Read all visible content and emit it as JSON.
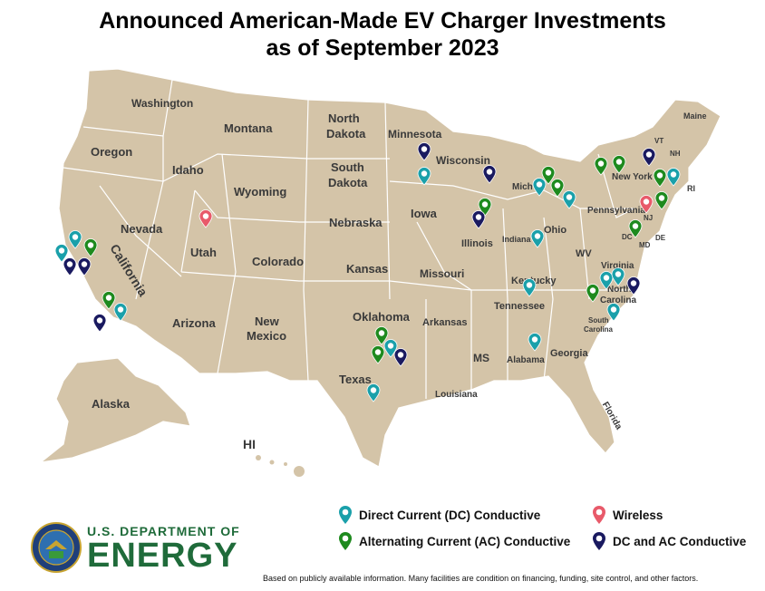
{
  "title_line1": "Announced American-Made EV Charger Investments",
  "title_line2": "as of September 2023",
  "states": [
    "Washington",
    "Montana",
    "North Dakota",
    "Minnesota",
    "Oregon",
    "Idaho",
    "South Dakota",
    "Wisconsin",
    "Wyoming",
    "Nevada",
    "Utah",
    "Nebraska",
    "Iowa",
    "Colorado",
    "Kansas",
    "Missouri",
    "Illinois",
    "Indiana",
    "Ohio",
    "Michigan",
    "California",
    "Arizona",
    "New Mexico",
    "Oklahoma",
    "Arkansas",
    "Texas",
    "Louisiana",
    "MS",
    "Alabama",
    "Georgia",
    "Florida",
    "Tennessee",
    "Kentucky",
    "WV",
    "Virginia",
    "North Carolina",
    "South Carolina",
    "Pennsylvania",
    "New York",
    "Maine",
    "VT",
    "NH",
    "RI",
    "NJ",
    "DE",
    "MD",
    "DC",
    "Alaska",
    "HI"
  ],
  "legend": {
    "dc": "Direct Current (DC) Conductive",
    "ac": "Alternating Current (AC) Conductive",
    "wireless": "Wireless",
    "dcac": "DC and AC Conductive"
  },
  "colors": {
    "dc": "#1aa0aa",
    "ac": "#1e8a1e",
    "wireless": "#e85a6a",
    "dcac": "#1a1a60",
    "land": "#d4c4a8"
  },
  "logo": {
    "line1": "U.S. DEPARTMENT OF",
    "line2": "ENERGY"
  },
  "footnote": "Based on publicly available information. Many facilities are condition on financing, funding, site control, and other factors."
}
